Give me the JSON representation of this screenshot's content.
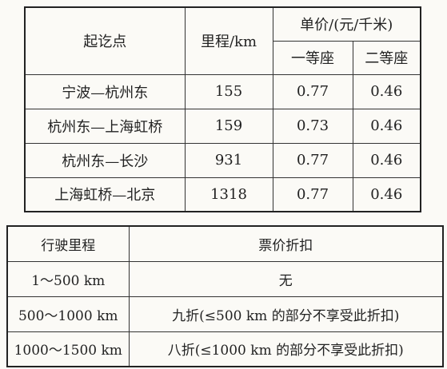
{
  "fare_table": {
    "headers": {
      "route": "起讫点",
      "distance": "里程/km",
      "unit_price": "单价/(元/千米)",
      "first_class": "一等座",
      "second_class": "二等座"
    },
    "rows": [
      [
        "宁波—杭州东",
        155,
        0.77,
        0.46
      ],
      [
        "杭州东—上海虹桥",
        159,
        0.73,
        0.46
      ],
      [
        "杭州东—长沙",
        931,
        0.77,
        0.46
      ],
      [
        "上海虹桥—北京",
        1318,
        0.77,
        0.46
      ]
    ]
  },
  "discount_table": {
    "headers": [
      "行驶里程",
      "票价折扣"
    ],
    "rows": [
      [
        "1～500 km",
        "无"
      ],
      [
        "500～1000 km",
        "九折(≤500 km 的部分不享受此折扣)"
      ],
      [
        "1000～1500 km",
        "八折(≤1000 km 的部分不享受此折扣)"
      ]
    ]
  }
}
